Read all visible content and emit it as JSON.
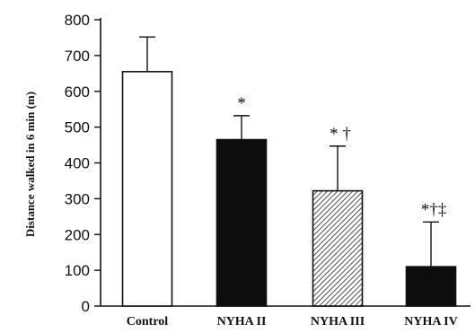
{
  "chart_data": {
    "type": "bar",
    "categories": [
      "Control",
      "NYHA II",
      "NYHA III",
      "NYHA IV"
    ],
    "values": [
      655,
      465,
      322,
      110
    ],
    "error_upper": [
      752,
      532,
      447,
      235
    ],
    "annotations": [
      "",
      "*",
      "* †",
      "*†‡"
    ],
    "bar_fills": [
      "white",
      "black",
      "hatched",
      "black"
    ],
    "ylabel": "Distance walked in 6 min (m)",
    "xlabel": "",
    "title": "",
    "ylim": [
      0,
      800
    ],
    "yticks": [
      0,
      100,
      200,
      300,
      400,
      500,
      600,
      700,
      800
    ],
    "grid": false,
    "legend": "none",
    "colors": {
      "ink": "#111111",
      "white_bar": "#ffffff",
      "black_bar": "#0d0d0d"
    }
  }
}
